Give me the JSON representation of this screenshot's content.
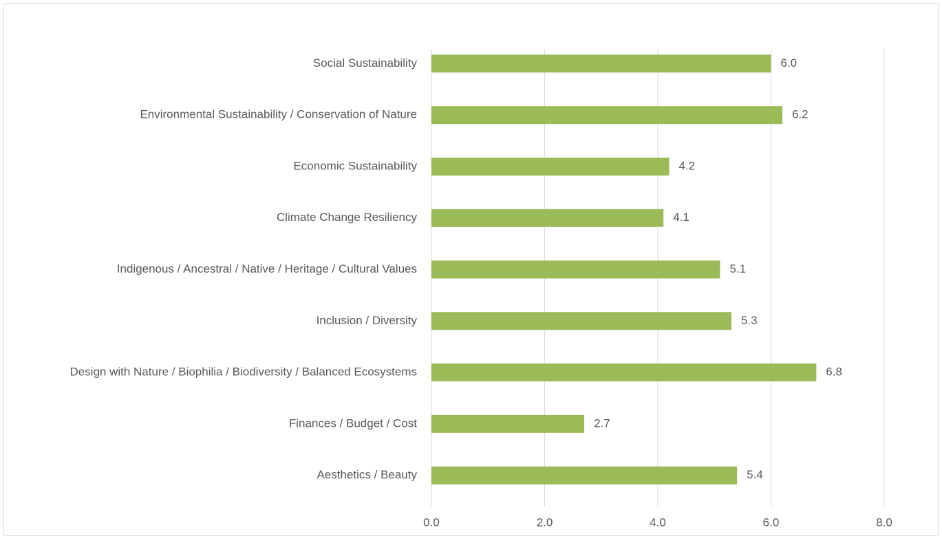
{
  "chart_data": {
    "type": "hbar",
    "categories": [
      "Social Sustainability",
      "Environmental Sustainability / Conservation of Nature",
      "Economic Sustainability",
      "Climate Change Resiliency",
      "Indigenous / Ancestral / Native / Heritage / Cultural Values",
      "Inclusion / Diversity",
      "Design with Nature / Biophilia / Biodiversity / Balanced Ecosystems",
      "Finances / Budget / Cost",
      "Aesthetics / Beauty"
    ],
    "values": [
      6.0,
      6.2,
      4.2,
      4.1,
      5.1,
      5.3,
      6.8,
      2.7,
      5.4
    ],
    "value_labels": [
      "6.0",
      "6.2",
      "4.2",
      "4.1",
      "5.1",
      "5.3",
      "6.8",
      "2.7",
      "5.4"
    ],
    "color": "#9bbb59",
    "xlim": [
      0,
      8
    ],
    "xticks": [
      {
        "value": 0,
        "label": "0.0"
      },
      {
        "value": 2,
        "label": "2.0"
      },
      {
        "value": 4,
        "label": "4.0"
      },
      {
        "value": 6,
        "label": "6.0"
      },
      {
        "value": 8,
        "label": "8.0"
      }
    ],
    "grid": true
  }
}
